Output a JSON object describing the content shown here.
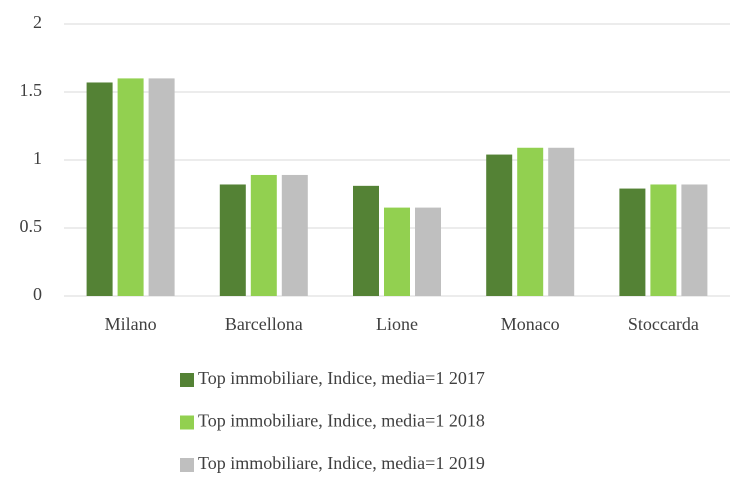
{
  "chart_data": {
    "type": "bar",
    "categories": [
      "Milano",
      "Barcellona",
      "Lione",
      "Monaco",
      "Stoccarda"
    ],
    "series": [
      {
        "name": "Top immobiliare, Indice, media=1 2017",
        "color": "#548235",
        "values": [
          1.57,
          0.82,
          0.81,
          1.04,
          0.79
        ]
      },
      {
        "name": "Top immobiliare, Indice, media=1 2018",
        "color": "#92d050",
        "values": [
          1.6,
          0.89,
          0.65,
          1.09,
          0.82
        ]
      },
      {
        "name": "Top immobiliare, Indice, media=1 2019",
        "color": "#bfbfbf",
        "values": [
          1.6,
          0.89,
          0.65,
          1.09,
          0.82
        ]
      }
    ],
    "ylim": [
      0,
      2
    ],
    "yticks": [
      0,
      0.5,
      1,
      1.5,
      2
    ],
    "grid": true,
    "legend": "bottom"
  }
}
